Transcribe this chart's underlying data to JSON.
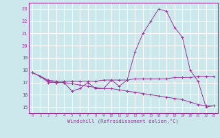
{
  "xlabel": "Windchill (Refroidissement éolien,°C)",
  "background_color": "#cce8ec",
  "grid_color": "#ffffff",
  "line_color": "#993399",
  "x_values": [
    0,
    1,
    2,
    3,
    4,
    5,
    6,
    7,
    8,
    9,
    10,
    11,
    12,
    13,
    14,
    15,
    16,
    17,
    18,
    19,
    20,
    21,
    22,
    23
  ],
  "series1": [
    17.8,
    17.5,
    17.0,
    17.0,
    17.0,
    16.3,
    16.5,
    17.0,
    16.5,
    16.5,
    17.2,
    16.7,
    17.2,
    19.5,
    21.0,
    22.0,
    23.0,
    22.8,
    21.5,
    20.7,
    18.0,
    17.1,
    15.0,
    15.1
  ],
  "series2": [
    17.8,
    17.5,
    17.1,
    17.0,
    17.0,
    16.9,
    16.8,
    16.7,
    16.6,
    16.5,
    16.5,
    16.4,
    16.3,
    16.2,
    16.1,
    16.0,
    15.9,
    15.8,
    15.7,
    15.6,
    15.4,
    15.2,
    15.1,
    15.1
  ],
  "series3": [
    17.8,
    17.5,
    17.2,
    17.1,
    17.1,
    17.1,
    17.1,
    17.1,
    17.1,
    17.2,
    17.2,
    17.2,
    17.2,
    17.3,
    17.3,
    17.3,
    17.3,
    17.3,
    17.4,
    17.4,
    17.4,
    17.5,
    17.5,
    17.5
  ],
  "ylim": [
    14.5,
    23.5
  ],
  "xlim": [
    -0.5,
    23.5
  ],
  "yticks": [
    15,
    16,
    17,
    18,
    19,
    20,
    21,
    22,
    23
  ],
  "xticks": [
    0,
    1,
    2,
    3,
    4,
    5,
    6,
    7,
    8,
    9,
    10,
    11,
    12,
    13,
    14,
    15,
    16,
    17,
    18,
    19,
    20,
    21,
    22,
    23
  ]
}
